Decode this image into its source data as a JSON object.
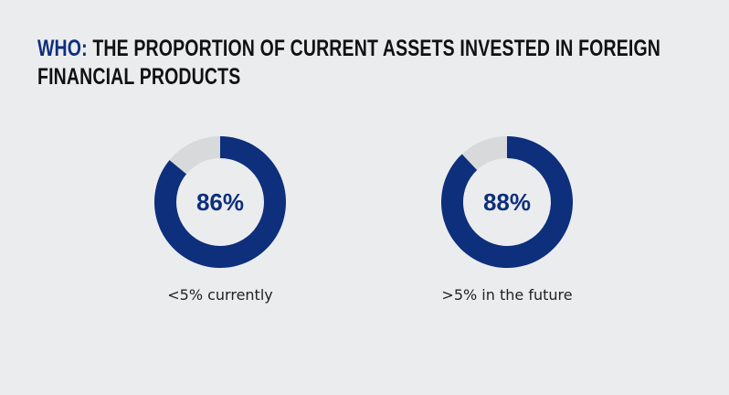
{
  "title": {
    "prefix": "WHO:",
    "text": " THE PROPORTION OF CURRENT ASSETS INVESTED IN FOREIGN FINANCIAL PRODUCTS"
  },
  "colors": {
    "accent": "#0d2f7c",
    "remainder": "#d8d9db",
    "background": "#ebecee"
  },
  "chart_data": [
    {
      "type": "pie",
      "variant": "donut",
      "value": 86,
      "value_label": "86%",
      "label": "<5% currently",
      "max": 100
    },
    {
      "type": "pie",
      "variant": "donut",
      "value": 88,
      "value_label": "88%",
      "label": ">5% in the future",
      "max": 100
    }
  ]
}
